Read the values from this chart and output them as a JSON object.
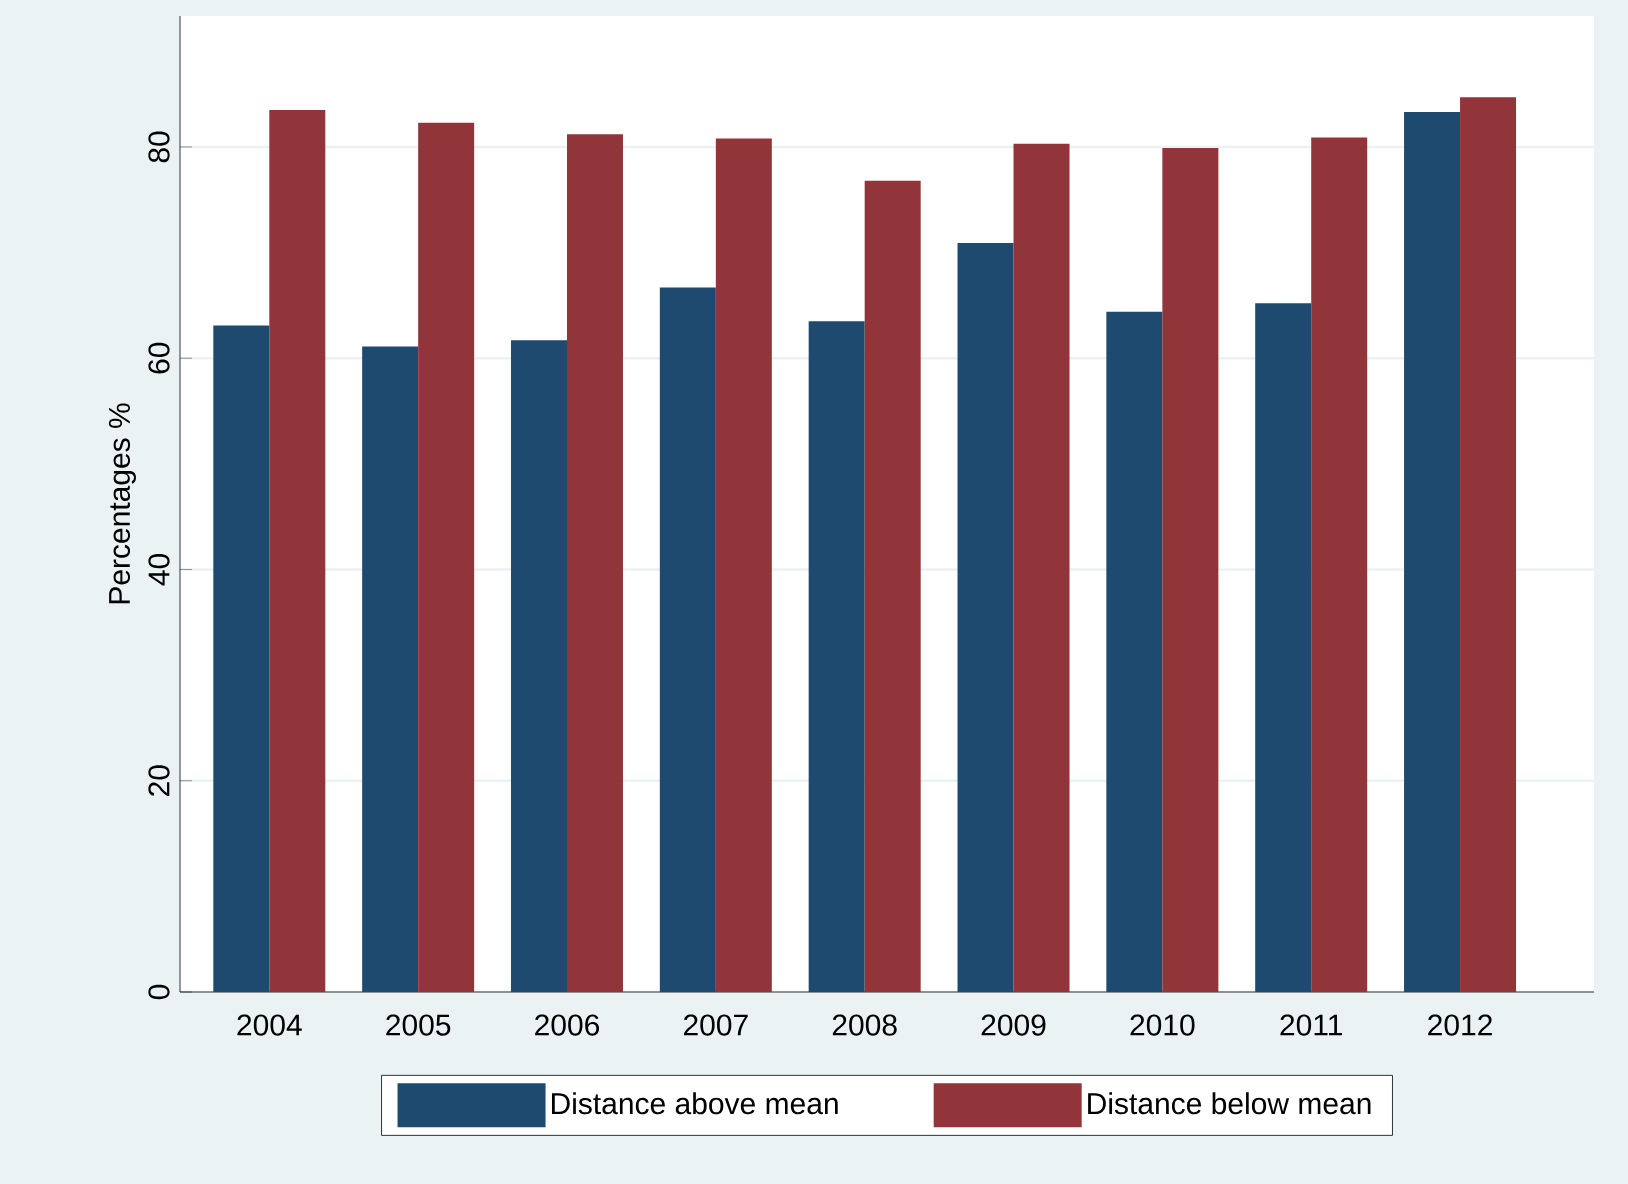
{
  "chart_data": {
    "type": "bar",
    "ylabel": "Percentages %",
    "categories": [
      "2004",
      "2005",
      "2006",
      "2007",
      "2008",
      "2009",
      "2010",
      "2011",
      "2012"
    ],
    "series": [
      {
        "name": "Distance above mean",
        "color": "#1d4a6e",
        "values": [
          63.1,
          61.1,
          61.7,
          66.7,
          63.5,
          70.9,
          64.4,
          65.2,
          83.3
        ]
      },
      {
        "name": "Distance below mean",
        "color": "#91353b",
        "values": [
          83.5,
          82.3,
          81.2,
          80.8,
          76.8,
          80.3,
          79.9,
          80.9,
          84.7
        ]
      }
    ],
    "ylim": [
      0,
      92.4
    ],
    "yticks": [
      0,
      20,
      40,
      60,
      80
    ],
    "grid": "y",
    "legend": "bottom"
  }
}
